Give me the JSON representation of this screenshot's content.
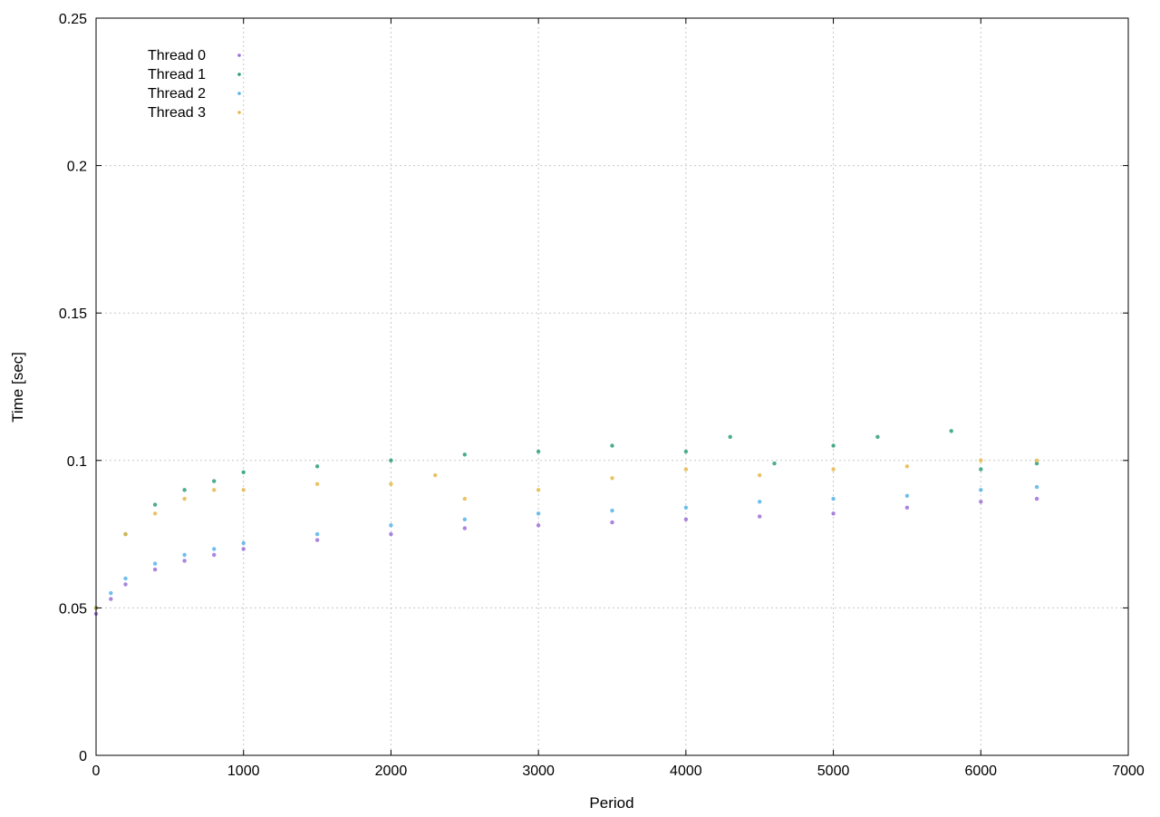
{
  "chart_data": {
    "type": "scatter",
    "title": "",
    "xlabel": "Period",
    "ylabel": "Time [sec]",
    "xlim": [
      0,
      7000
    ],
    "ylim": [
      0,
      0.25
    ],
    "xticks": [
      0,
      1000,
      2000,
      3000,
      4000,
      5000,
      6000,
      7000
    ],
    "xtick_labels": [
      "0",
      "1000",
      "2000",
      "3000",
      "4000",
      "5000",
      "6000",
      "7000"
    ],
    "yticks": [
      0,
      0.05,
      0.1,
      0.15,
      0.2,
      0.25
    ],
    "ytick_labels": [
      "0",
      "0.05",
      "0.1",
      "0.15",
      "0.2",
      "0.25"
    ],
    "grid": true,
    "legend_position": "top-left",
    "series": [
      {
        "name": "Thread 0",
        "color": "#9b6fd8",
        "x": [
          0,
          100,
          200,
          400,
          600,
          800,
          1000,
          1500,
          2000,
          2500,
          3000,
          3500,
          4000,
          4500,
          5000,
          5500,
          6000,
          6380
        ],
        "y": [
          0.048,
          0.053,
          0.058,
          0.063,
          0.066,
          0.068,
          0.07,
          0.073,
          0.075,
          0.077,
          0.078,
          0.079,
          0.08,
          0.081,
          0.082,
          0.084,
          0.086,
          0.087
        ]
      },
      {
        "name": "Thread 1",
        "color": "#2a9d7c",
        "x": [
          0,
          200,
          400,
          600,
          800,
          1000,
          1500,
          2000,
          2500,
          3000,
          3500,
          4000,
          4300,
          4600,
          5000,
          5300,
          5800,
          6000,
          6380
        ],
        "y": [
          0.05,
          0.075,
          0.085,
          0.09,
          0.093,
          0.096,
          0.098,
          0.1,
          0.102,
          0.103,
          0.105,
          0.103,
          0.108,
          0.099,
          0.105,
          0.108,
          0.11,
          0.097,
          0.099
        ]
      },
      {
        "name": "Thread 2",
        "color": "#56b4e9",
        "x": [
          0,
          100,
          200,
          400,
          600,
          800,
          1000,
          1500,
          2000,
          2500,
          3000,
          3500,
          4000,
          4500,
          5000,
          5500,
          6000,
          6380
        ],
        "y": [
          0.05,
          0.055,
          0.06,
          0.065,
          0.068,
          0.07,
          0.072,
          0.075,
          0.078,
          0.08,
          0.082,
          0.083,
          0.084,
          0.086,
          0.087,
          0.088,
          0.09,
          0.091
        ]
      },
      {
        "name": "Thread 3",
        "color": "#e6b84a",
        "x": [
          0,
          200,
          400,
          600,
          800,
          1000,
          1500,
          2000,
          2300,
          2500,
          3000,
          3500,
          4000,
          4500,
          5000,
          5500,
          6000,
          6380
        ],
        "y": [
          0.05,
          0.075,
          0.082,
          0.087,
          0.09,
          0.09,
          0.092,
          0.092,
          0.095,
          0.087,
          0.09,
          0.094,
          0.097,
          0.095,
          0.097,
          0.098,
          0.1,
          0.1
        ]
      }
    ]
  }
}
